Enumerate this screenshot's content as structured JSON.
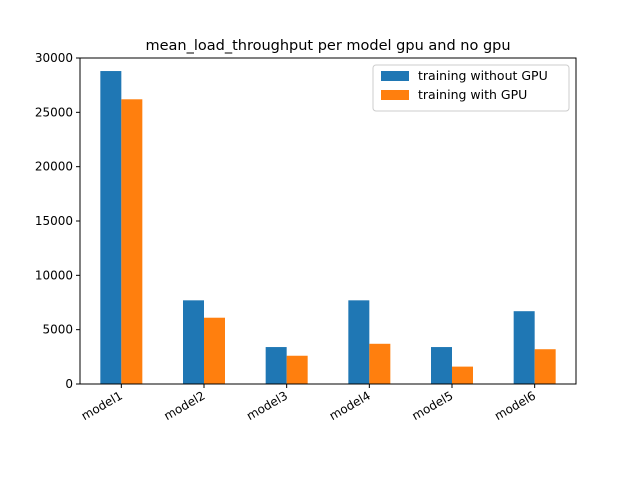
{
  "chart_data": {
    "type": "bar",
    "title": "mean_load_throughput per model gpu and no gpu",
    "xlabel": "",
    "ylabel": "",
    "categories": [
      "model1",
      "model2",
      "model3",
      "model4",
      "model5",
      "model6"
    ],
    "series": [
      {
        "name": "training without GPU",
        "color": "#1f77b4",
        "values": [
          28800,
          7700,
          3400,
          7700,
          3400,
          6700
        ]
      },
      {
        "name": "training with GPU",
        "color": "#ff7f0e",
        "values": [
          26200,
          6100,
          2600,
          3700,
          1600,
          3200
        ]
      }
    ],
    "ylim": [
      0,
      30000
    ],
    "yticks": [
      0,
      5000,
      10000,
      15000,
      20000,
      25000,
      30000
    ],
    "grid": false,
    "legend_position": "top-right"
  }
}
